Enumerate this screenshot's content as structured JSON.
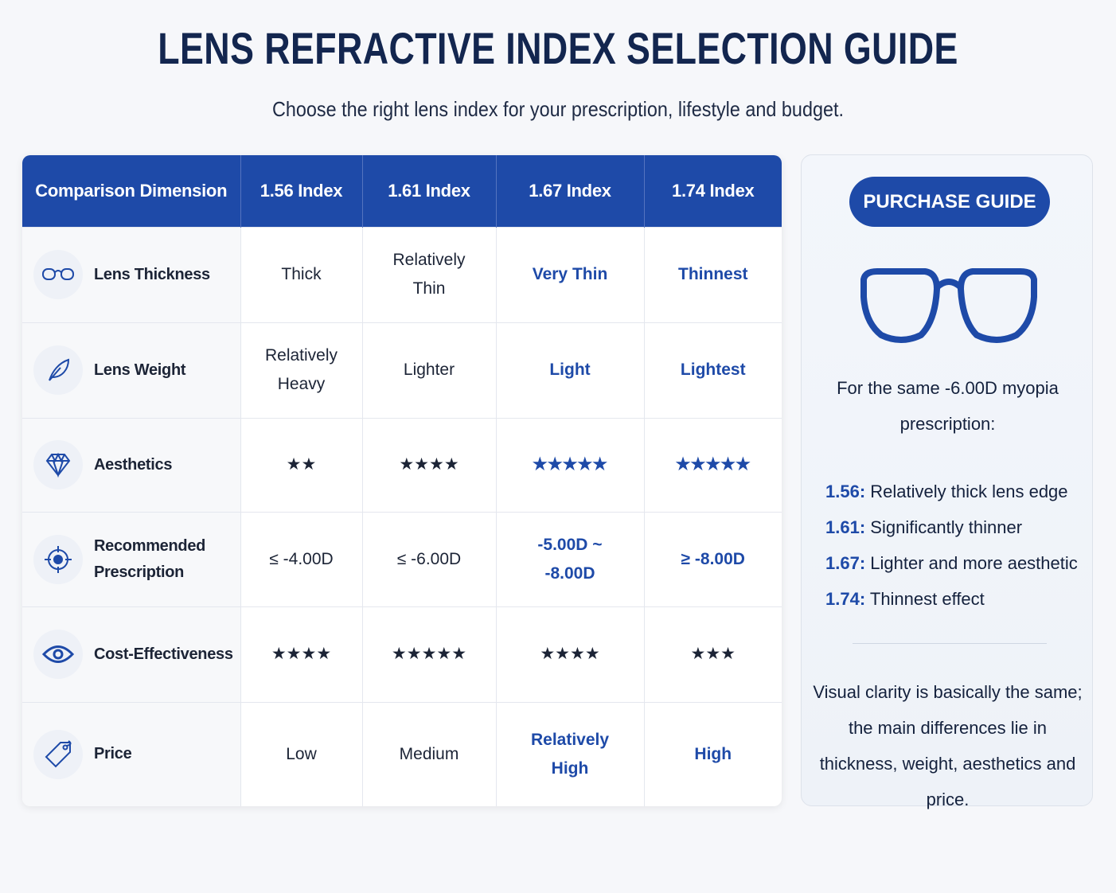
{
  "header": {
    "title": "LENS REFRACTIVE INDEX SELECTION GUIDE",
    "subtitle": "Choose the right lens index for your prescription, lifestyle and budget."
  },
  "table": {
    "columns": [
      "Comparison Dimension",
      "1.56 Index",
      "1.61 Index",
      "1.67 Index",
      "1.74 Index"
    ],
    "rows": [
      {
        "label": "Lens Thickness",
        "cells": [
          "Thick",
          "Relatively Thin",
          "Very Thin",
          "Thinnest"
        ]
      },
      {
        "label": "Lens Weight",
        "cells": [
          "Relatively Heavy",
          "Lighter",
          "Light",
          "Lightest"
        ]
      },
      {
        "label": "Aesthetics",
        "cells": [
          "★★",
          "★★★★",
          "★★★★★",
          "★★★★★"
        ]
      },
      {
        "label": "Recommended Prescription",
        "cells": [
          "≤ -4.00D",
          "≤ -6.00D",
          "-5.00D ~ -8.00D",
          "≥ -8.00D"
        ]
      },
      {
        "label": "Cost-Effectiveness",
        "cells": [
          "★★★★",
          "★★★★★",
          "★★★★",
          "★★★"
        ]
      },
      {
        "label": "Price",
        "cells": [
          "Low",
          "Medium",
          "Relatively High",
          "High"
        ]
      }
    ]
  },
  "guide": {
    "button": "PURCHASE GUIDE",
    "intro": "For the same -6.00D myopia prescription:",
    "items": [
      {
        "index": "1.56:",
        "text": "Relatively thick lens edge"
      },
      {
        "index": "1.61:",
        "text": "Significantly thinner"
      },
      {
        "index": "1.67:",
        "text": "Lighter and more aesthetic"
      },
      {
        "index": "1.74:",
        "text": "Thinnest effect"
      }
    ],
    "note": "Visual clarity is basically the same; the main differences lie in thickness, weight, aesthetics and price."
  }
}
